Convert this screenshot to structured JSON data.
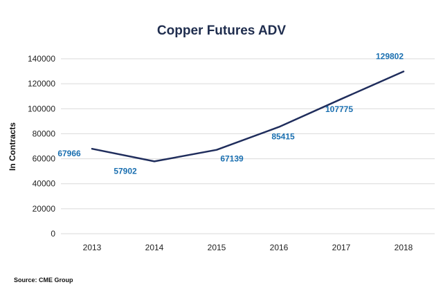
{
  "chart_data": {
    "type": "line",
    "title": "Copper Futures ADV",
    "ylabel": "In Contracts",
    "xlabel": "",
    "categories": [
      "2013",
      "2014",
      "2015",
      "2016",
      "2017",
      "2018"
    ],
    "series": [
      {
        "values": [
          67966,
          57902,
          67139,
          85415,
          107775,
          129802
        ],
        "labels": [
          "67966",
          "57902",
          "67139",
          "85415",
          "107775",
          "129802"
        ]
      }
    ],
    "ylim": [
      0,
      140000
    ],
    "yticks": [
      "0",
      "20000",
      "40000",
      "60000",
      "80000",
      "100000",
      "120000",
      "140000"
    ],
    "grid": true,
    "legend": "none",
    "source": "Source: CME Group",
    "colors": {
      "line": "#1f2d5c",
      "label": "#1a6fb0",
      "title": "#1f2d4e",
      "grid": "#d9d9d9"
    }
  }
}
